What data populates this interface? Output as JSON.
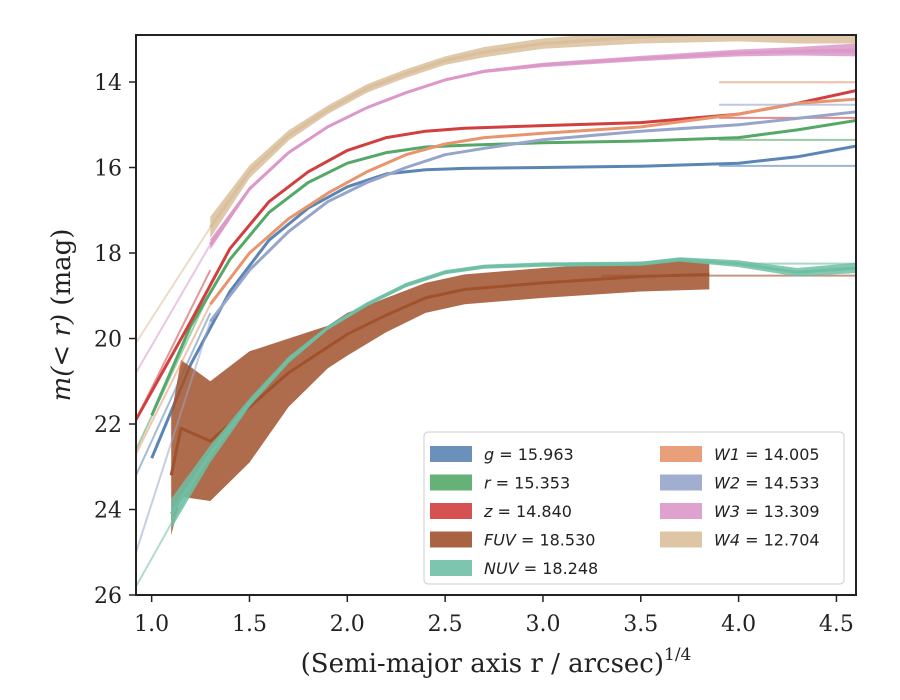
{
  "chart_data": {
    "type": "line",
    "xlabel": "(Semi-major axis r / arcsec)",
    "xlabel_exponent": "1/4",
    "ylabel_prefix": "m(< r)",
    "ylabel_unit": " (mag)",
    "xlim": [
      0.92,
      4.6
    ],
    "ylim": [
      26,
      12.9
    ],
    "y_inverted": true,
    "xticks": [
      1.0,
      1.5,
      2.0,
      2.5,
      3.0,
      3.5,
      4.0,
      4.5
    ],
    "xtick_labels": [
      "1.0",
      "1.5",
      "2.0",
      "2.5",
      "3.0",
      "3.5",
      "4.0",
      "4.5"
    ],
    "yticks": [
      14,
      16,
      18,
      20,
      22,
      24,
      26
    ],
    "ytick_labels": [
      "14",
      "16",
      "18",
      "20",
      "22",
      "24",
      "26"
    ],
    "grid": false,
    "legend_position": "lower-right",
    "series": [
      {
        "name": "g",
        "total": "15.963",
        "color": "#5b85b3",
        "x": [
          1.0,
          1.2,
          1.4,
          1.6,
          1.8,
          2.0,
          2.2,
          2.4,
          2.6,
          3.0,
          3.5,
          4.0,
          4.3,
          4.6
        ],
        "y": [
          22.8,
          20.6,
          18.9,
          17.7,
          16.95,
          16.45,
          16.15,
          16.05,
          16.02,
          16.0,
          15.97,
          15.9,
          15.75,
          15.5
        ],
        "band": [],
        "model_x": [
          0.92,
          1.3
        ],
        "model_y": [
          23.2,
          19.4
        ],
        "asymptote": 15.963
      },
      {
        "name": "r",
        "total": "15.353",
        "color": "#55a868",
        "x": [
          1.0,
          1.2,
          1.4,
          1.6,
          1.8,
          2.0,
          2.2,
          2.4,
          2.6,
          3.0,
          3.5,
          4.0,
          4.3,
          4.6
        ],
        "y": [
          21.8,
          19.7,
          18.15,
          17.05,
          16.35,
          15.9,
          15.65,
          15.52,
          15.48,
          15.42,
          15.38,
          15.3,
          15.12,
          14.9
        ],
        "band": [],
        "model_x": [
          0.92,
          1.3
        ],
        "model_y": [
          22.6,
          18.9
        ],
        "asymptote": 15.353
      },
      {
        "name": "z",
        "total": "14.840",
        "color": "#d13f3f",
        "x": [
          0.92,
          1.2,
          1.4,
          1.6,
          1.8,
          2.0,
          2.2,
          2.4,
          2.6,
          3.0,
          3.5,
          4.0,
          4.3,
          4.6
        ],
        "y": [
          21.9,
          19.6,
          17.9,
          16.8,
          16.1,
          15.6,
          15.3,
          15.15,
          15.08,
          15.02,
          14.95,
          14.75,
          14.5,
          14.2
        ],
        "band": [],
        "model_x": [
          0.92,
          1.3
        ],
        "model_y": [
          21.9,
          18.4
        ],
        "asymptote": 14.84
      },
      {
        "name": "FUV",
        "total": "18.530",
        "color": "#a0522d",
        "x": [
          1.1,
          1.15,
          1.3,
          1.5,
          1.7,
          1.9,
          2.0,
          2.2,
          2.4,
          2.6,
          3.0,
          3.5,
          3.85
        ],
        "y": [
          23.2,
          22.1,
          22.4,
          21.6,
          20.8,
          20.2,
          19.9,
          19.45,
          19.05,
          18.85,
          18.7,
          18.55,
          18.5
        ],
        "band": [
          1.4,
          1.6,
          1.4,
          1.3,
          0.8,
          0.5,
          0.5,
          0.4,
          0.35,
          0.35,
          0.35,
          0.35,
          0.35
        ],
        "model_x": [],
        "model_y": [],
        "asymptote": 18.53
      },
      {
        "name": "NUV",
        "total": "18.248",
        "color": "#6fbfa5",
        "x": [
          1.1,
          1.3,
          1.5,
          1.7,
          1.9,
          2.1,
          2.3,
          2.5,
          2.7,
          3.0,
          3.5,
          3.7,
          4.0,
          4.3,
          4.6
        ],
        "y": [
          24.1,
          22.7,
          21.5,
          20.5,
          19.75,
          19.2,
          18.75,
          18.45,
          18.32,
          18.27,
          18.25,
          18.15,
          18.25,
          18.45,
          18.35
        ],
        "band": [
          0.35,
          0.2,
          0.1,
          0.08,
          0.05,
          0.05,
          0.05,
          0.05,
          0.05,
          0.05,
          0.05,
          0.05,
          0.08,
          0.1,
          0.12
        ],
        "model_x": [
          0.92,
          1.3
        ],
        "model_y": [
          25.8,
          22.7
        ],
        "asymptote": 18.248
      },
      {
        "name": "W1",
        "total": "14.005",
        "color": "#e8956d",
        "x": [
          1.3,
          1.5,
          1.7,
          1.9,
          2.1,
          2.3,
          2.5,
          2.7,
          3.0,
          3.5,
          4.0,
          4.3,
          4.6
        ],
        "y": [
          19.2,
          18.0,
          17.2,
          16.6,
          16.1,
          15.7,
          15.45,
          15.3,
          15.2,
          15.05,
          14.75,
          14.5,
          14.4
        ],
        "band": [],
        "model_x": [
          0.92,
          1.3
        ],
        "model_y": [
          22.7,
          19.2
        ],
        "asymptote": 14.005
      },
      {
        "name": "W2",
        "total": "14.533",
        "color": "#97a5cb",
        "x": [
          1.3,
          1.5,
          1.7,
          1.9,
          2.1,
          2.3,
          2.5,
          2.7,
          3.0,
          3.5,
          4.0,
          4.3,
          4.6
        ],
        "y": [
          19.6,
          18.4,
          17.5,
          16.8,
          16.35,
          16.0,
          15.7,
          15.55,
          15.35,
          15.15,
          15.0,
          14.85,
          14.7
        ],
        "band": [],
        "model_x": [
          0.92,
          1.3
        ],
        "model_y": [
          25.0,
          19.6
        ],
        "asymptote": 14.533
      },
      {
        "name": "W3",
        "total": "13.309",
        "color": "#db98c9",
        "x": [
          1.3,
          1.5,
          1.7,
          1.9,
          2.1,
          2.3,
          2.5,
          2.7,
          3.0,
          3.5,
          4.0,
          4.3,
          4.6
        ],
        "y": [
          17.8,
          16.5,
          15.65,
          15.05,
          14.6,
          14.25,
          13.95,
          13.75,
          13.6,
          13.45,
          13.32,
          13.28,
          13.25
        ],
        "band": [
          0.12,
          0.05,
          0.04,
          0.03,
          0.03,
          0.03,
          0.03,
          0.04,
          0.05,
          0.06,
          0.08,
          0.1,
          0.15
        ],
        "model_x": [
          0.92,
          1.3
        ],
        "model_y": [
          20.8,
          17.8
        ],
        "asymptote": 13.309
      },
      {
        "name": "W4",
        "total": "12.704",
        "color": "#d9bf9b",
        "x": [
          1.3,
          1.5,
          1.7,
          1.9,
          2.1,
          2.3,
          2.5,
          2.7,
          3.0,
          3.5,
          4.0,
          4.3,
          4.6
        ],
        "y": [
          17.4,
          16.1,
          15.25,
          14.65,
          14.15,
          13.8,
          13.5,
          13.3,
          13.1,
          12.95,
          12.85,
          12.8,
          12.75
        ],
        "band": [
          0.25,
          0.15,
          0.12,
          0.1,
          0.1,
          0.1,
          0.1,
          0.12,
          0.12,
          0.15,
          0.2,
          0.3,
          0.35
        ],
        "model_x": [
          0.92,
          1.3
        ],
        "model_y": [
          20.1,
          17.4
        ],
        "asymptote": 12.704
      }
    ]
  }
}
